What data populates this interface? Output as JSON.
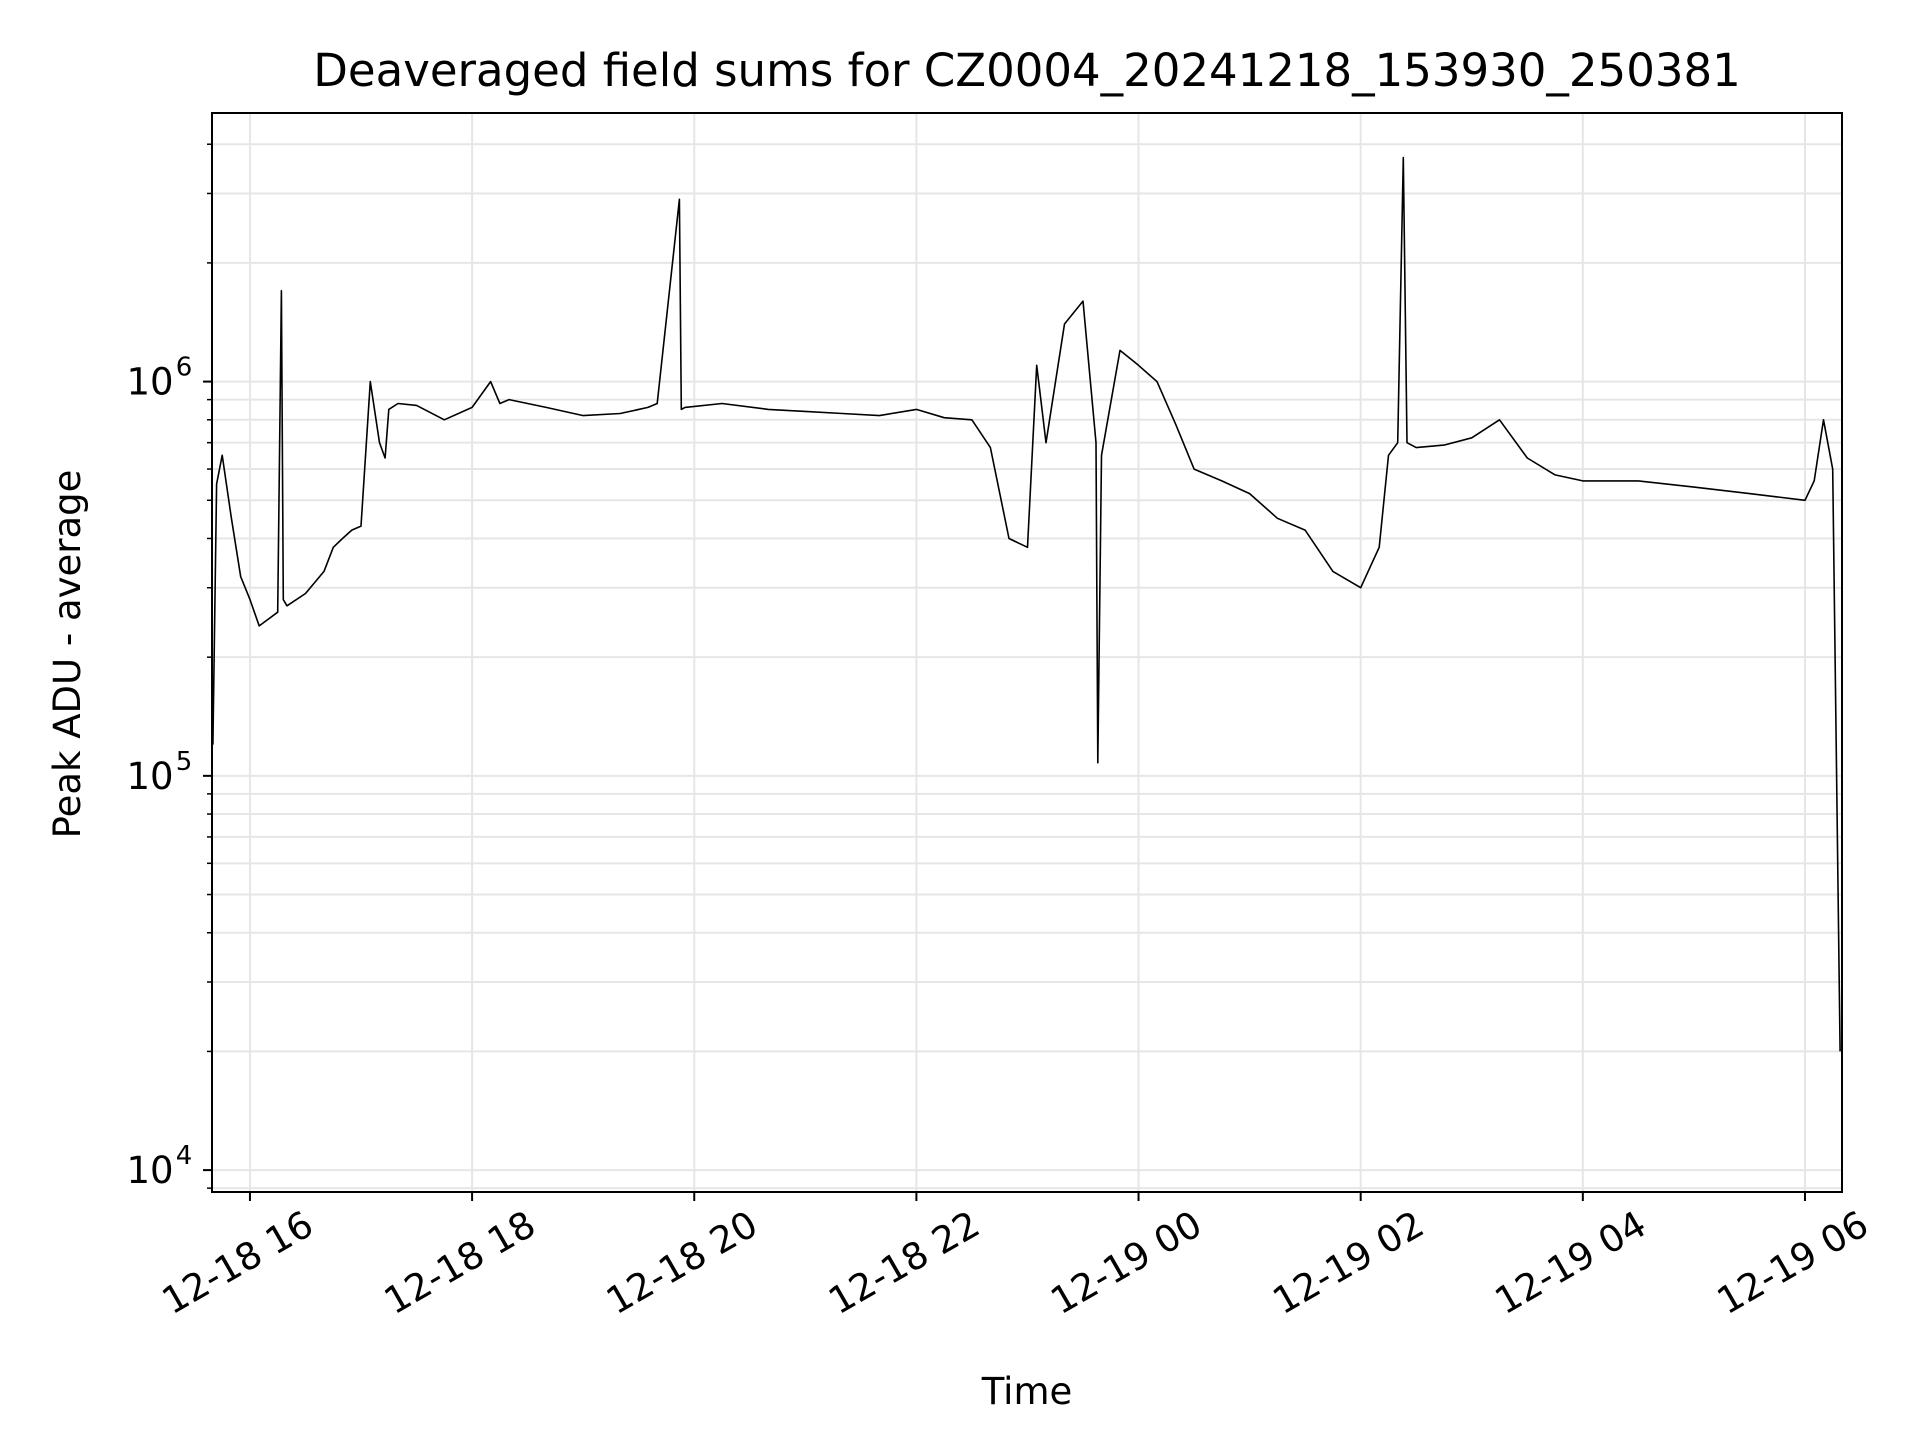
{
  "chart_data": {
    "type": "line",
    "title": "Deaveraged field sums for CZ0004_20241218_153930_250381",
    "xlabel": "Time",
    "ylabel": "Peak ADU - average",
    "y_scale": "log",
    "ylim": [
      8800,
      4800000
    ],
    "xlim": [
      "2024-12-18T15:39:30",
      "2024-12-19T06:20:00"
    ],
    "x_ticks": [
      {
        "value": "2024-12-18T16:00:00",
        "label": "12-18 16"
      },
      {
        "value": "2024-12-18T18:00:00",
        "label": "12-18 18"
      },
      {
        "value": "2024-12-18T20:00:00",
        "label": "12-18 20"
      },
      {
        "value": "2024-12-18T22:00:00",
        "label": "12-18 22"
      },
      {
        "value": "2024-12-19T00:00:00",
        "label": "12-19 00"
      },
      {
        "value": "2024-12-19T02:00:00",
        "label": "12-19 02"
      },
      {
        "value": "2024-12-19T04:00:00",
        "label": "12-19 04"
      },
      {
        "value": "2024-12-19T06:00:00",
        "label": "12-19 06"
      }
    ],
    "y_ticks": [
      {
        "value": 10000,
        "base": "10",
        "exp": "4"
      },
      {
        "value": 100000,
        "base": "10",
        "exp": "5"
      },
      {
        "value": 1000000,
        "base": "10",
        "exp": "6"
      }
    ],
    "grid": true,
    "line_color": "#000000",
    "grid_color": "#e6e6e6",
    "series": [
      {
        "x": [
          "2024-12-18T15:40:00",
          "2024-12-18T15:42:00",
          "2024-12-18T15:45:00",
          "2024-12-18T15:50:00",
          "2024-12-18T15:55:00",
          "2024-12-18T16:00:00",
          "2024-12-18T16:05:00",
          "2024-12-18T16:10:00",
          "2024-12-18T16:15:00",
          "2024-12-18T16:17:00",
          "2024-12-18T16:18:00",
          "2024-12-18T16:20:00",
          "2024-12-18T16:30:00",
          "2024-12-18T16:40:00",
          "2024-12-18T16:45:00",
          "2024-12-18T16:50:00",
          "2024-12-18T16:55:00",
          "2024-12-18T17:00:00",
          "2024-12-18T17:05:00",
          "2024-12-18T17:10:00",
          "2024-12-18T17:13:00",
          "2024-12-18T17:15:00",
          "2024-12-18T17:20:00",
          "2024-12-18T17:30:00",
          "2024-12-18T17:45:00",
          "2024-12-18T18:00:00",
          "2024-12-18T18:10:00",
          "2024-12-18T18:15:00",
          "2024-12-18T18:20:00",
          "2024-12-18T18:40:00",
          "2024-12-18T19:00:00",
          "2024-12-18T19:20:00",
          "2024-12-18T19:35:00",
          "2024-12-18T19:40:00",
          "2024-12-18T19:52:00",
          "2024-12-18T19:53:00",
          "2024-12-18T19:55:00",
          "2024-12-18T20:15:00",
          "2024-12-18T20:40:00",
          "2024-12-18T21:00:00",
          "2024-12-18T21:20:00",
          "2024-12-18T21:40:00",
          "2024-12-18T22:00:00",
          "2024-12-18T22:15:00",
          "2024-12-18T22:30:00",
          "2024-12-18T22:40:00",
          "2024-12-18T22:50:00",
          "2024-12-18T23:00:00",
          "2024-12-18T23:05:00",
          "2024-12-18T23:10:00",
          "2024-12-18T23:20:00",
          "2024-12-18T23:30:00",
          "2024-12-18T23:37:00",
          "2024-12-18T23:38:00",
          "2024-12-18T23:40:00",
          "2024-12-18T23:50:00",
          "2024-12-19T00:00:00",
          "2024-12-19T00:10:00",
          "2024-12-19T00:20:00",
          "2024-12-19T00:30:00",
          "2024-12-19T00:45:00",
          "2024-12-19T01:00:00",
          "2024-12-19T01:15:00",
          "2024-12-19T01:30:00",
          "2024-12-19T01:45:00",
          "2024-12-19T02:00:00",
          "2024-12-19T02:10:00",
          "2024-12-19T02:15:00",
          "2024-12-19T02:20:00",
          "2024-12-19T02:23:00",
          "2024-12-19T02:25:00",
          "2024-12-19T02:30:00",
          "2024-12-19T02:45:00",
          "2024-12-19T03:00:00",
          "2024-12-19T03:15:00",
          "2024-12-19T03:30:00",
          "2024-12-19T03:45:00",
          "2024-12-19T04:00:00",
          "2024-12-19T04:30:00",
          "2024-12-19T05:00:00",
          "2024-12-19T05:30:00",
          "2024-12-19T05:45:00",
          "2024-12-19T06:00:00",
          "2024-12-19T06:05:00",
          "2024-12-19T06:10:00",
          "2024-12-19T06:15:00",
          "2024-12-19T06:19:00"
        ],
        "y": [
          120000,
          550000,
          650000,
          450000,
          320000,
          280000,
          240000,
          250000,
          260000,
          1700000,
          280000,
          270000,
          290000,
          330000,
          380000,
          400000,
          420000,
          430000,
          1000000,
          700000,
          640000,
          850000,
          880000,
          870000,
          800000,
          860000,
          1000000,
          880000,
          900000,
          860000,
          820000,
          830000,
          860000,
          880000,
          2900000,
          850000,
          860000,
          880000,
          850000,
          840000,
          830000,
          820000,
          850000,
          810000,
          800000,
          680000,
          400000,
          380000,
          1100000,
          700000,
          1400000,
          1600000,
          700000,
          108000,
          650000,
          1200000,
          1100000,
          1000000,
          780000,
          600000,
          560000,
          520000,
          450000,
          420000,
          330000,
          300000,
          380000,
          650000,
          700000,
          3700000,
          700000,
          680000,
          690000,
          720000,
          800000,
          640000,
          580000,
          560000,
          560000,
          540000,
          520000,
          510000,
          500000,
          560000,
          800000,
          600000,
          20000
        ]
      }
    ]
  }
}
